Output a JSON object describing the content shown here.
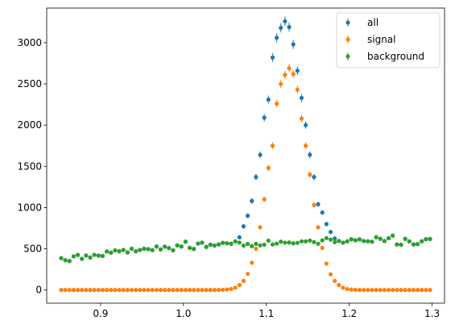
{
  "chart_data": {
    "type": "scatter",
    "title": "",
    "xlabel": "",
    "ylabel": "",
    "xlim": [
      0.835,
      1.315
    ],
    "ylim": [
      -160,
      3420
    ],
    "xticks": [
      0.9,
      1.0,
      1.1,
      1.2,
      1.3
    ],
    "xtick_labels": [
      "0.9",
      "1.0",
      "1.1",
      "1.2",
      "1.3"
    ],
    "yticks": [
      0,
      500,
      1000,
      1500,
      2000,
      2500,
      3000
    ],
    "ytick_labels": [
      "0",
      "500",
      "1000",
      "1500",
      "2000",
      "2500",
      "3000"
    ],
    "grid": false,
    "error_bars": true,
    "legend_position": "top-right",
    "x": [
      0.8525,
      0.8575,
      0.8625,
      0.8675,
      0.8725,
      0.8775,
      0.8825,
      0.8875,
      0.8925,
      0.8975,
      0.9025,
      0.9075,
      0.9125,
      0.9175,
      0.9225,
      0.9275,
      0.9325,
      0.9375,
      0.9425,
      0.9475,
      0.9525,
      0.9575,
      0.9625,
      0.9675,
      0.9725,
      0.9775,
      0.9825,
      0.9875,
      0.9925,
      0.9975,
      1.0025,
      1.0075,
      1.0125,
      1.0175,
      1.0225,
      1.0275,
      1.0325,
      1.0375,
      1.0425,
      1.0475,
      1.0525,
      1.0575,
      1.0625,
      1.0675,
      1.0725,
      1.0775,
      1.0825,
      1.0875,
      1.0925,
      1.0975,
      1.1025,
      1.1075,
      1.1125,
      1.1175,
      1.1225,
      1.1275,
      1.1325,
      1.1375,
      1.1425,
      1.1475,
      1.1525,
      1.1575,
      1.1625,
      1.1675,
      1.1725,
      1.1775,
      1.1825,
      1.1875,
      1.1925,
      1.1975,
      1.2025,
      1.2075,
      1.2125,
      1.2175,
      1.2225,
      1.2275,
      1.2325,
      1.2375,
      1.2425,
      1.2475,
      1.2525,
      1.2575,
      1.2625,
      1.2675,
      1.2725,
      1.2775,
      1.2825,
      1.2875,
      1.2925,
      1.2975
    ],
    "series": [
      {
        "name": "all",
        "color": "#1f77b4",
        "values": [
          386,
          361,
          351,
          408,
          425,
          378,
          418,
          394,
          426,
          417,
          412,
          467,
          453,
          480,
          469,
          486,
          456,
          500,
          469,
          485,
          501,
          495,
          484,
          527,
          492,
          526,
          508,
          481,
          541,
          527,
          586,
          511,
          498,
          563,
          574,
          522,
          549,
          539,
          553,
          572,
          567,
          560,
          589,
          639,
          772,
          900,
          1080,
          1370,
          1640,
          2090,
          2310,
          2820,
          3060,
          3180,
          3260,
          3190,
          2980,
          2660,
          2330,
          2000,
          1640,
          1370,
          1040,
          940,
          800,
          704,
          625,
          595,
          574,
          590,
          615,
          603,
          614,
          594,
          591,
          585,
          640,
          621,
          594,
          628,
          660,
          552,
          549,
          620,
          590,
          553,
          557,
          590,
          616,
          619
        ]
      },
      {
        "name": "signal",
        "color": "#ff7f0e",
        "values": [
          0,
          0,
          0,
          0,
          0,
          0,
          0,
          0,
          0,
          0,
          0,
          0,
          0,
          0,
          0,
          0,
          0,
          0,
          0,
          0,
          0,
          0,
          0,
          0,
          0,
          0,
          0,
          0,
          0,
          0,
          0,
          0,
          0,
          0,
          0,
          0,
          0,
          0,
          1,
          2,
          5,
          12,
          28,
          60,
          110,
          195,
          330,
          500,
          760,
          1100,
          1480,
          1750,
          2260,
          2500,
          2610,
          2690,
          2620,
          2430,
          2080,
          1750,
          1400,
          1030,
          760,
          510,
          320,
          190,
          110,
          60,
          28,
          12,
          5,
          2,
          1,
          0,
          0,
          0,
          0,
          0,
          0,
          0,
          0,
          0,
          0,
          0,
          0,
          0,
          0,
          0,
          0,
          0
        ]
      },
      {
        "name": "background",
        "color": "#2ca02c",
        "values": [
          386,
          361,
          351,
          408,
          425,
          378,
          418,
          394,
          426,
          417,
          412,
          467,
          453,
          480,
          469,
          486,
          456,
          500,
          469,
          485,
          501,
          495,
          484,
          527,
          492,
          526,
          508,
          481,
          541,
          527,
          586,
          511,
          498,
          563,
          574,
          522,
          549,
          539,
          553,
          572,
          567,
          560,
          589,
          575,
          538,
          558,
          532,
          560,
          540,
          550,
          598,
          552,
          562,
          586,
          574,
          576,
          566,
          572,
          590,
          590,
          600,
          581,
          561,
          602,
          629,
          611,
          580,
          595,
          574,
          590,
          615,
          603,
          614,
          594,
          591,
          585,
          640,
          621,
          594,
          628,
          660,
          552,
          549,
          620,
          590,
          553,
          557,
          590,
          616,
          619
        ]
      }
    ]
  }
}
